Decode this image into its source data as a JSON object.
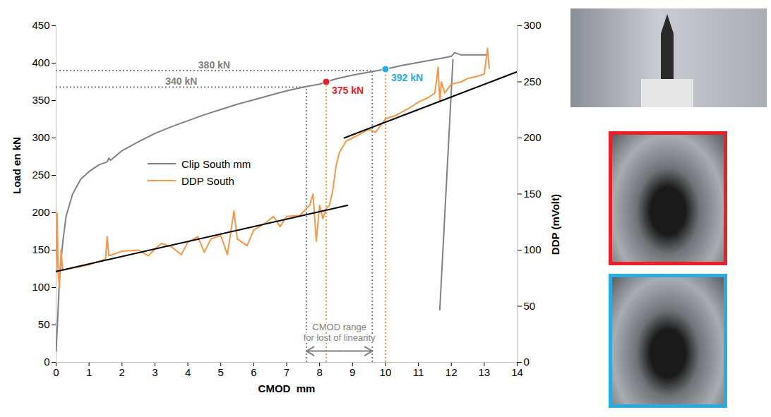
{
  "chart_data": {
    "type": "line",
    "xlabel": "CMOD  mm",
    "ylabel": "Load en kN",
    "y2label": "DDP (mVolt)",
    "xlim": [
      0,
      14
    ],
    "xticks": [
      0,
      1,
      2,
      3,
      4,
      5,
      6,
      7,
      8,
      9,
      10,
      11,
      12,
      13,
      14
    ],
    "ylim": [
      0,
      450
    ],
    "yticks": [
      0,
      50,
      100,
      150,
      200,
      250,
      300,
      350,
      400,
      450
    ],
    "y2lim": [
      0,
      300
    ],
    "y2ticks": [
      0,
      50,
      100,
      150,
      200,
      250,
      300
    ],
    "grid": false,
    "legend": "center left",
    "series": [
      {
        "name": "Clip South mm",
        "color": "#808080",
        "axis": "y",
        "type": "line",
        "x": [
          0,
          0.05,
          0.1,
          0.2,
          0.3,
          0.5,
          0.75,
          1,
          1.3,
          1.55,
          1.6,
          1.65,
          2,
          2.5,
          3,
          3.5,
          4,
          4.5,
          5,
          5.5,
          6,
          6.5,
          7,
          7.5,
          8,
          8.2,
          8.5,
          9,
          9.5,
          10,
          10.5,
          11,
          11.5,
          12,
          12.1,
          12.3,
          13.1,
          13.1,
          12.05,
          11.65
        ],
        "values": [
          15,
          60,
          110,
          160,
          195,
          225,
          245,
          255,
          264,
          268,
          273,
          270,
          283,
          295,
          306,
          315,
          323,
          331,
          338,
          345,
          351,
          357,
          363,
          368,
          372,
          375,
          379,
          384,
          388,
          392,
          397,
          401,
          405,
          409,
          414,
          411,
          411,
          null,
          405,
          70
        ]
      },
      {
        "name": "DDP South",
        "color": "#f79646",
        "axis": "y2",
        "type": "line",
        "x": [
          0,
          0.03,
          0.06,
          0.1,
          0.15,
          0.2,
          0.5,
          1,
          1.5,
          1.55,
          1.6,
          2,
          2.5,
          2.8,
          3,
          3.2,
          3.5,
          3.8,
          4,
          4.3,
          4.5,
          4.7,
          5,
          5.2,
          5.4,
          5.5,
          5.8,
          6,
          6.3,
          6.6,
          6.8,
          7,
          7.4,
          7.7,
          7.8,
          7.9,
          8,
          8.1,
          8.2,
          8.3,
          8.4,
          8.5,
          8.6,
          8.8,
          9,
          9.2,
          9.5,
          9.7,
          10,
          10.3,
          10.5,
          10.8,
          11,
          11.3,
          11.5,
          11.6,
          11.65,
          11.7,
          11.8,
          12,
          12.3,
          12.5,
          12.8,
          13,
          13.1,
          13.15
        ],
        "values": [
          81,
          133,
          80,
          67,
          100,
          82,
          84,
          87,
          92,
          112,
          95,
          99,
          100,
          95,
          101,
          106,
          103,
          96,
          107,
          112,
          98,
          110,
          113,
          96,
          135,
          110,
          104,
          118,
          123,
          130,
          121,
          130,
          131,
          140,
          150,
          108,
          140,
          128,
          137,
          140,
          153,
          175,
          187,
          197,
          200,
          203,
          208,
          205,
          217,
          220,
          223,
          228,
          232,
          236,
          240,
          263,
          232,
          250,
          240,
          248,
          250,
          253,
          255,
          257,
          280,
          262
        ]
      }
    ],
    "trend_lines": [
      {
        "color": "#000000",
        "axis": "y2",
        "line_style": "solid",
        "x": [
          0,
          8.85
        ],
        "values": [
          81,
          140
        ]
      },
      {
        "color": "#000000",
        "axis": "y2",
        "line_style": "solid",
        "x": [
          8.75,
          14
        ],
        "values": [
          200,
          259
        ]
      }
    ],
    "reference_lines": [
      {
        "label": "380 kN",
        "x": 9.6,
        "y": 390,
        "color": "#808080",
        "line_style": "dotted"
      },
      {
        "label": "340 kN",
        "x": 7.6,
        "y": 368,
        "color": "#808080",
        "line_style": "dotted"
      }
    ],
    "markers": [
      {
        "label": "375 kN",
        "x": 8.2,
        "y": 375,
        "color": "#e8202a",
        "line_style": "dotted"
      },
      {
        "label": "392 kN",
        "x": 10.0,
        "y": 392,
        "color": "#29abe2",
        "line_style": "dotted"
      }
    ],
    "range_arrow": {
      "text": [
        "CMOD range",
        "for lost of linearity"
      ],
      "x": [
        7.6,
        9.6
      ],
      "y": 15,
      "color": "#808080"
    }
  }
}
